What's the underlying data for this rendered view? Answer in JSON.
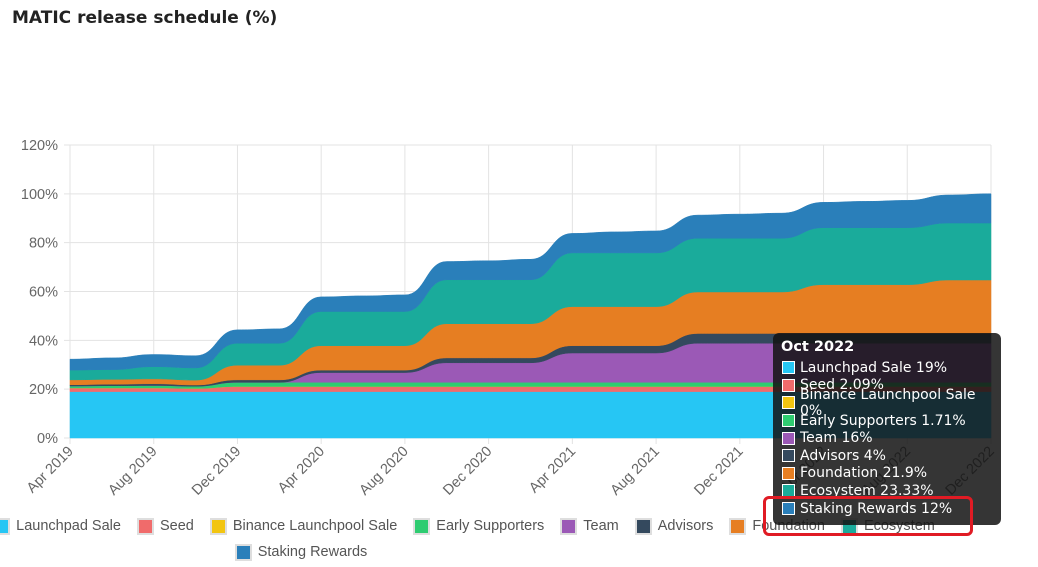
{
  "title": "MATIC release schedule (%)",
  "chart_data": {
    "type": "area",
    "stacked": true,
    "ylim": [
      0,
      120
    ],
    "y_ticks": [
      0,
      20,
      40,
      60,
      80,
      100,
      120
    ],
    "y_tick_labels": [
      "0%",
      "20%",
      "40%",
      "60%",
      "80%",
      "100%",
      "120%"
    ],
    "x_tick_labels": [
      "Apr 2019",
      "Aug 2019",
      "Dec 2019",
      "Apr 2020",
      "Aug 2020",
      "Dec 2020",
      "Apr 2021",
      "Aug 2021",
      "Dec 2021",
      "Apr 2022",
      "Aug 2022",
      "Dec 2022"
    ],
    "x": [
      "Apr 2019",
      "Jun 2019",
      "Aug 2019",
      "Oct 2019",
      "Dec 2019",
      "Feb 2020",
      "Apr 2020",
      "Jun 2020",
      "Aug 2020",
      "Oct 2020",
      "Dec 2020",
      "Feb 2021",
      "Apr 2021",
      "Jun 2021",
      "Aug 2021",
      "Oct 2021",
      "Dec 2021",
      "Feb 2022",
      "Apr 2022",
      "Jun 2022",
      "Aug 2022",
      "Oct 2022",
      "Dec 2022"
    ],
    "series": [
      {
        "name": "Launchpad Sale",
        "color": "#26c6f4",
        "values": [
          19,
          19,
          19,
          19,
          19,
          19,
          19,
          19,
          19,
          19,
          19,
          19,
          19,
          19,
          19,
          19,
          19,
          19,
          19,
          19,
          19,
          19,
          19
        ]
      },
      {
        "name": "Seed",
        "color": "#f06b6b",
        "values": [
          1.5,
          1.5,
          1.5,
          1.3,
          2.09,
          2.09,
          2.09,
          2.09,
          2.09,
          2.09,
          2.09,
          2.09,
          2.09,
          2.09,
          2.09,
          2.09,
          2.09,
          2.09,
          2.09,
          2.09,
          2.09,
          2.09,
          2.09
        ]
      },
      {
        "name": "Binance Launchpool Sale",
        "color": "#f2c511",
        "values": [
          0,
          0,
          0,
          0,
          0,
          0,
          0,
          0,
          0,
          0,
          0,
          0,
          0,
          0,
          0,
          0,
          0,
          0,
          0,
          0,
          0,
          0,
          0
        ]
      },
      {
        "name": "Early Supporters",
        "color": "#2ecc71",
        "values": [
          0.8,
          0.9,
          1.0,
          0.9,
          1.71,
          1.71,
          1.71,
          1.71,
          1.71,
          1.71,
          1.71,
          1.71,
          1.71,
          1.71,
          1.71,
          1.71,
          1.71,
          1.71,
          1.71,
          1.71,
          1.71,
          1.71,
          1.71
        ]
      },
      {
        "name": "Team",
        "color": "#9b59b6",
        "values": [
          0,
          0,
          0,
          0,
          0,
          0,
          4,
          4,
          4,
          8,
          8,
          8,
          12,
          12,
          12,
          16,
          16,
          16,
          16,
          16,
          16,
          16,
          16
        ]
      },
      {
        "name": "Advisors",
        "color": "#34495e",
        "values": [
          0.5,
          0.6,
          0.7,
          0.5,
          1,
          1,
          1,
          1,
          1,
          2,
          2,
          2,
          3,
          3,
          3,
          4,
          4,
          4,
          4,
          4,
          4,
          4,
          4
        ]
      },
      {
        "name": "Foundation",
        "color": "#e67e22",
        "values": [
          2,
          2,
          2,
          2,
          6,
          6,
          10,
          10,
          10,
          14,
          14,
          14,
          16,
          16,
          16,
          17,
          17,
          17,
          20,
          20,
          20,
          21.9,
          21.9
        ]
      },
      {
        "name": "Ecosystem",
        "color": "#1aab9b",
        "values": [
          4,
          4,
          5,
          5,
          9,
          9,
          14,
          14,
          14,
          18,
          18,
          18,
          22,
          22,
          22,
          22,
          22,
          22,
          23.33,
          23.33,
          23.33,
          23.33,
          23.33
        ]
      },
      {
        "name": "Staking Rewards",
        "color": "#2a7fba",
        "values": [
          4.5,
          4.8,
          5.0,
          5.0,
          5.5,
          5.9,
          6.0,
          6.4,
          6.8,
          7.5,
          7.8,
          8.4,
          8.0,
          8.6,
          9.0,
          9.5,
          9.9,
          10.3,
          10.4,
          10.8,
          11.2,
          11.5,
          12
        ]
      }
    ],
    "legend_position": "bottom",
    "grid": true
  },
  "legend": {
    "row1": [
      "Launchpad Sale",
      "Seed",
      "Binance Launchpool Sale",
      "Early Supporters",
      "Team",
      "Advisors",
      "Foundation",
      "Ecosystem"
    ],
    "row2": [
      "Staking Rewards"
    ],
    "colors": {
      "Launchpad Sale": "#26c6f4",
      "Seed": "#f06b6b",
      "Binance Launchpool Sale": "#f2c511",
      "Early Supporters": "#2ecc71",
      "Team": "#9b59b6",
      "Advisors": "#34495e",
      "Foundation": "#e67e22",
      "Ecosystem": "#1aab9b",
      "Staking Rewards": "#2a7fba"
    }
  },
  "tooltip": {
    "title": "Oct 2022",
    "items": [
      {
        "label": "Launchpad Sale 19%",
        "color": "#26c6f4"
      },
      {
        "label": "Seed 2.09%",
        "color": "#f06b6b"
      },
      {
        "label": "Binance Launchpool Sale 0%",
        "color": "#f2c511"
      },
      {
        "label": "Early Supporters 1.71%",
        "color": "#2ecc71"
      },
      {
        "label": "Team 16%",
        "color": "#9b59b6"
      },
      {
        "label": "Advisors 4%",
        "color": "#34495e"
      },
      {
        "label": "Foundation 21.9%",
        "color": "#e67e22"
      },
      {
        "label": "Ecosystem 23.33%",
        "color": "#1aab9b"
      },
      {
        "label": "Staking Rewards 12%",
        "color": "#2a7fba"
      }
    ]
  }
}
